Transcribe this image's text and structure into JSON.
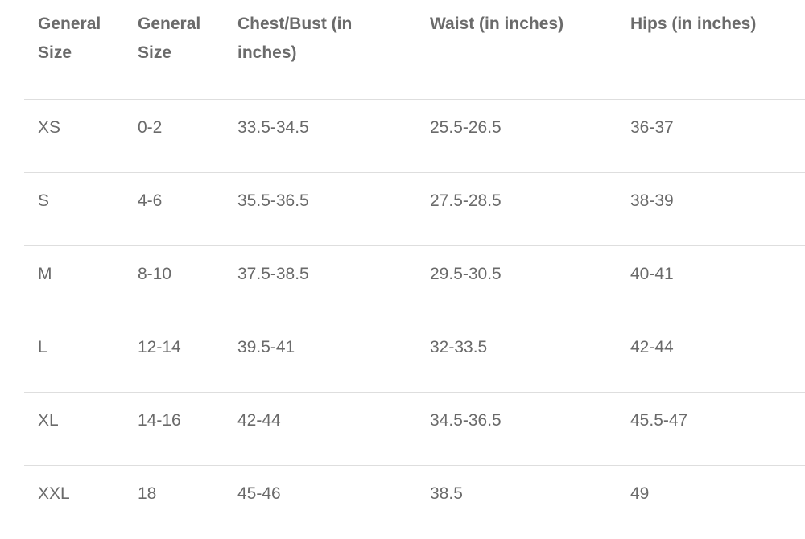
{
  "table": {
    "headers": [
      "General Size",
      "General Size",
      "Chest/Bust  (in inches)",
      "Waist  (in inches)",
      "Hips  (in inches)"
    ],
    "rows": [
      [
        "XS",
        "0-2",
        "33.5-34.5",
        "25.5-26.5",
        "36-37"
      ],
      [
        "S",
        "4-6",
        "35.5-36.5",
        "27.5-28.5",
        "38-39"
      ],
      [
        "M",
        "8-10",
        "37.5-38.5",
        "29.5-30.5",
        "40-41"
      ],
      [
        "L",
        "12-14",
        "39.5-41",
        "32-33.5",
        "42-44"
      ],
      [
        "XL",
        "14-16",
        "42-44",
        "34.5-36.5",
        "45.5-47"
      ],
      [
        "XXL",
        "18",
        "45-46",
        "38.5",
        "49"
      ]
    ]
  }
}
